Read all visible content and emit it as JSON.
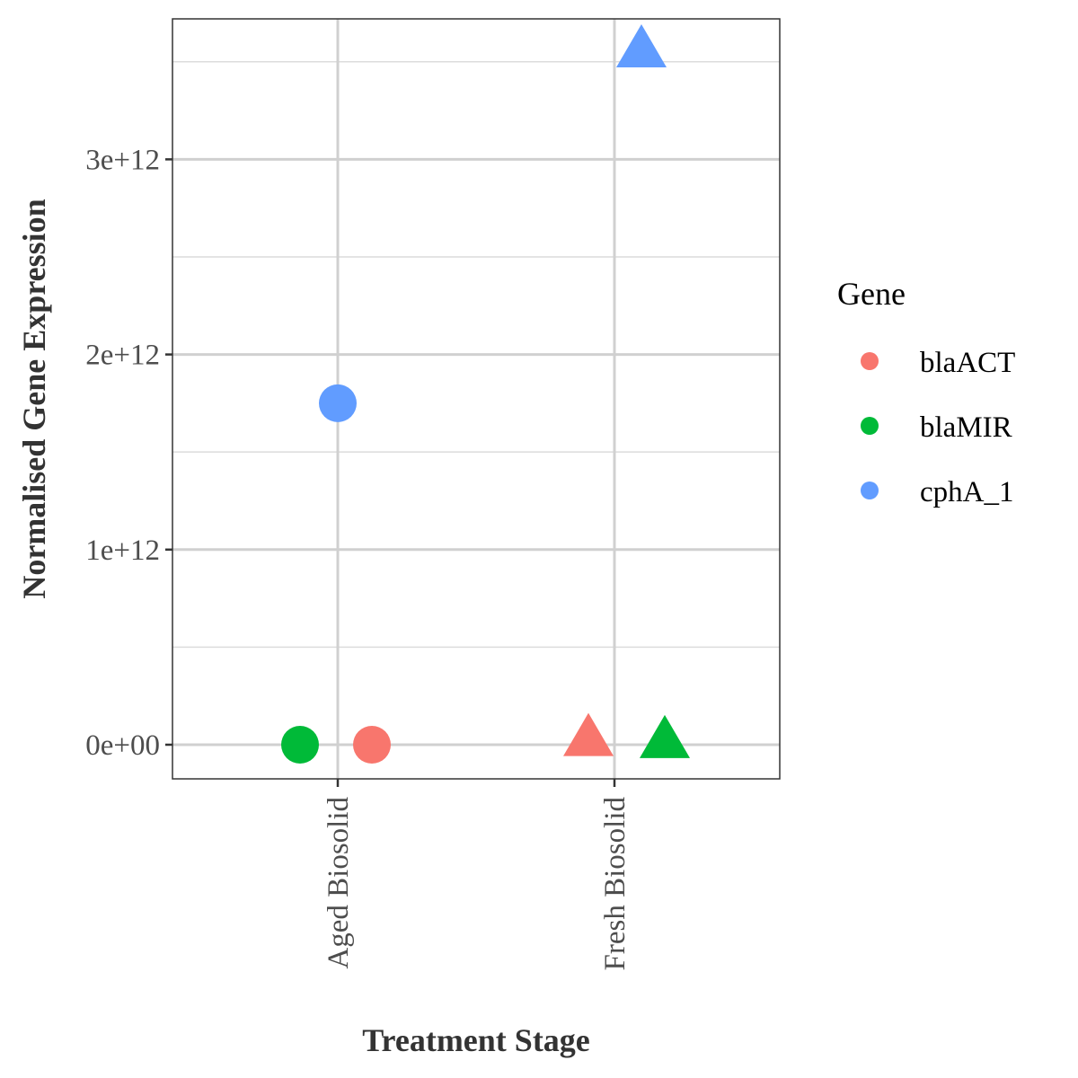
{
  "chart_data": {
    "type": "scatter",
    "xlabel": "Treatment Stage",
    "ylabel": "Normalised Gene Expression",
    "categories": [
      "Aged Biosolid",
      "Fresh Biosolid"
    ],
    "ylim": [
      -175000000000,
      3720000000000
    ],
    "yticks": [
      {
        "value": 0,
        "label": "0e+00"
      },
      {
        "value": 1000000000000,
        "label": "1e+12"
      },
      {
        "value": 2000000000000,
        "label": "2e+12"
      },
      {
        "value": 3000000000000,
        "label": "3e+12"
      }
    ],
    "grid": true,
    "legend": {
      "title": "Gene",
      "placement": "right"
    },
    "series": [
      {
        "name": "blaACT",
        "color": "#F8766D",
        "points": [
          {
            "category": "Aged Biosolid",
            "y": 0,
            "shape": "circle"
          },
          {
            "category": "Fresh Biosolid",
            "y": 30000000000,
            "shape": "triangle"
          }
        ]
      },
      {
        "name": "blaMIR",
        "color": "#00BA38",
        "points": [
          {
            "category": "Aged Biosolid",
            "y": 0,
            "shape": "circle"
          },
          {
            "category": "Fresh Biosolid",
            "y": 20000000000,
            "shape": "triangle"
          }
        ]
      },
      {
        "name": "cphA_1",
        "color": "#619CFF",
        "points": [
          {
            "category": "Aged Biosolid",
            "y": 1750000000000,
            "shape": "circle"
          },
          {
            "category": "Fresh Biosolid",
            "y": 3560000000000,
            "shape": "triangle"
          }
        ]
      }
    ]
  }
}
